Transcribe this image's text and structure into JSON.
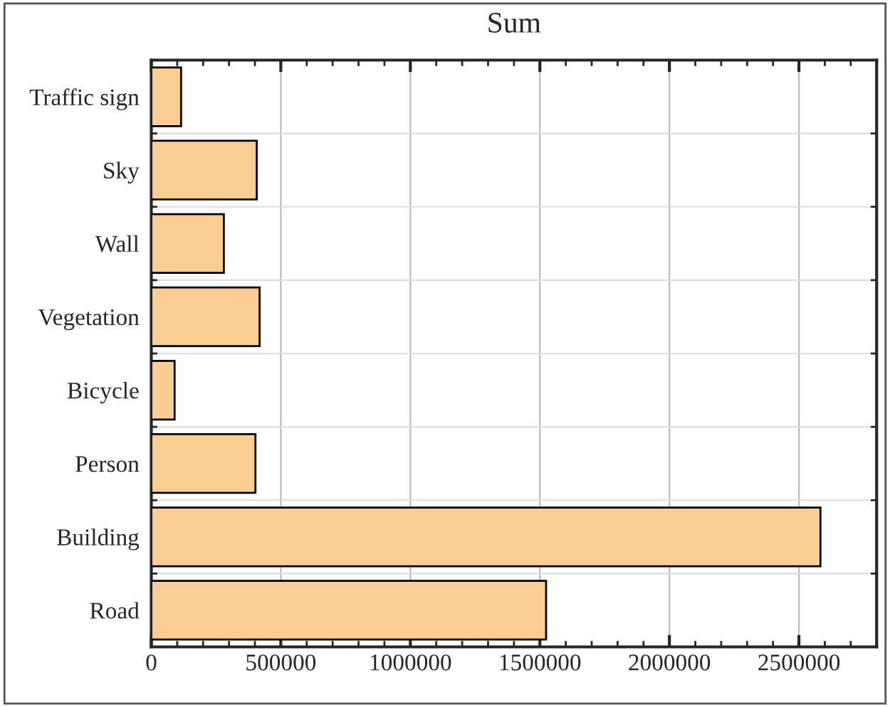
{
  "chart_data": {
    "type": "bar",
    "orientation": "horizontal",
    "title": "Sum",
    "categories": [
      "Traffic sign",
      "Sky",
      "Wall",
      "Vegetation",
      "Bicycle",
      "Person",
      "Building",
      "Road"
    ],
    "values": [
      115000,
      407000,
      280000,
      418000,
      90000,
      402000,
      2583000,
      1524000
    ],
    "color": "#fbcd93",
    "xlim": [
      0,
      2800000
    ],
    "xticks": [
      0,
      500000,
      1000000,
      1500000,
      2000000,
      2500000
    ],
    "grid": true
  }
}
